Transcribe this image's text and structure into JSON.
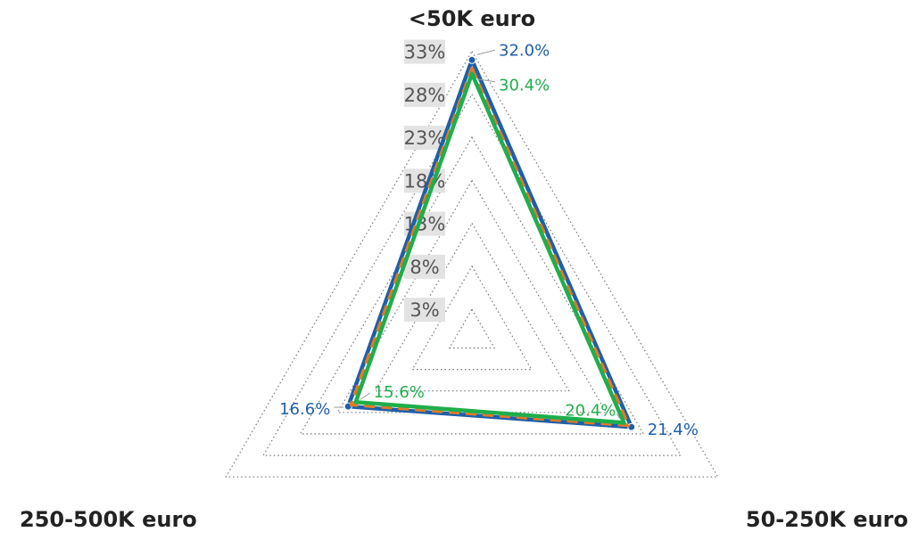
{
  "chart_data": {
    "type": "radar",
    "axes": [
      "<50K euro",
      "50-250K euro",
      "250-500K euro"
    ],
    "radial_ticks": [
      "3%",
      "8%",
      "13%",
      "18%",
      "23%",
      "28%",
      "33%"
    ],
    "rlim": [
      0,
      34
    ],
    "grid": true,
    "series": [
      {
        "color": "#1f5fa8",
        "style": "solid",
        "values": [
          32.0,
          21.4,
          16.6
        ],
        "labels": [
          "32.0%",
          "21.4%",
          "16.6%"
        ]
      },
      {
        "color": "#e07b28",
        "style": "dashed",
        "values": [
          31.0,
          21.0,
          16.2
        ],
        "labels": []
      },
      {
        "color": "#1fae4b",
        "style": "solid",
        "values": [
          30.4,
          20.4,
          15.6
        ],
        "labels": [
          "30.4%",
          "20.4%",
          "15.6%"
        ]
      }
    ]
  }
}
